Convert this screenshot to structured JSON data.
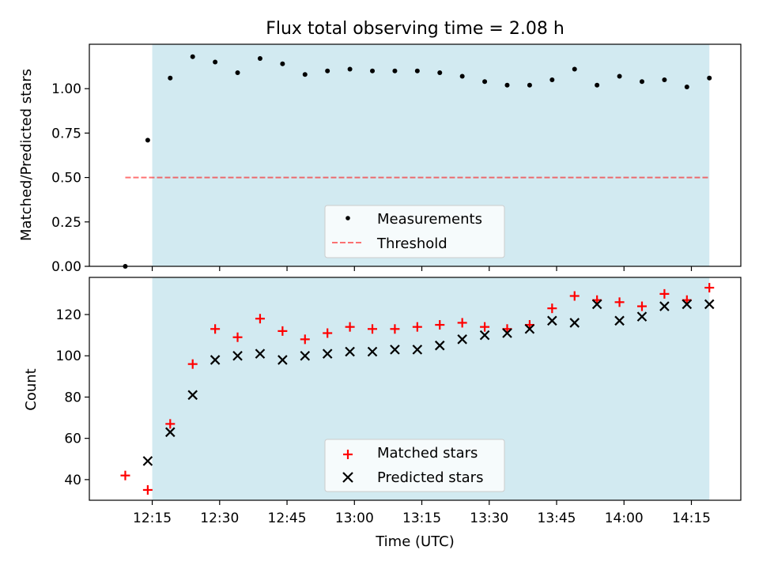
{
  "colors": {
    "shade": "#add8e6",
    "measurements": "#000000",
    "threshold": "#ff0000",
    "matched": "#ff0000",
    "predicted": "#000000"
  },
  "chart_data": [
    {
      "type": "scatter",
      "title": "Flux total observing time = 2.08 h",
      "xlabel": "",
      "ylabel": "Matched/Predicted stars",
      "ylim": [
        0.0,
        1.25
      ],
      "yticks": [
        "0.00",
        "0.25",
        "0.50",
        "0.75",
        "1.00"
      ],
      "xlim": [
        "12:01",
        "14:26"
      ],
      "shaded_interval": [
        "12:15",
        "14:19"
      ],
      "threshold": {
        "name": "Threshold",
        "value": 0.5,
        "x_start": "12:09",
        "x_end": "14:19"
      },
      "legend": {
        "placement": "lower center",
        "entries": [
          "Measurements",
          "Threshold"
        ]
      },
      "series": [
        {
          "name": "Measurements",
          "x": [
            "12:09",
            "12:14",
            "12:19",
            "12:24",
            "12:29",
            "12:34",
            "12:39",
            "12:44",
            "12:49",
            "12:54",
            "12:59",
            "13:04",
            "13:09",
            "13:14",
            "13:19",
            "13:24",
            "13:29",
            "13:34",
            "13:39",
            "13:44",
            "13:49",
            "13:54",
            "13:59",
            "14:04",
            "14:09",
            "14:14",
            "14:19"
          ],
          "y": [
            0.0,
            0.71,
            1.06,
            1.18,
            1.15,
            1.09,
            1.17,
            1.14,
            1.08,
            1.1,
            1.11,
            1.1,
            1.1,
            1.1,
            1.09,
            1.07,
            1.04,
            1.02,
            1.02,
            1.05,
            1.11,
            1.02,
            1.07,
            1.04,
            1.05,
            1.01,
            1.06
          ]
        }
      ]
    },
    {
      "type": "scatter",
      "title": "",
      "xlabel": "Time (UTC)",
      "ylabel": "Count",
      "ylim": [
        30,
        138
      ],
      "yticks": [
        40,
        60,
        80,
        100,
        120
      ],
      "xlim": [
        "12:01",
        "14:26"
      ],
      "xticks": [
        "12:15",
        "12:30",
        "12:45",
        "13:00",
        "13:15",
        "13:30",
        "13:45",
        "14:00",
        "14:15"
      ],
      "shaded_interval": [
        "12:15",
        "14:19"
      ],
      "legend": {
        "placement": "lower center",
        "entries": [
          "Matched stars",
          "Predicted stars"
        ]
      },
      "series": [
        {
          "name": "Matched stars",
          "marker": "+",
          "x": [
            "12:09",
            "12:14",
            "12:19",
            "12:24",
            "12:29",
            "12:34",
            "12:39",
            "12:44",
            "12:49",
            "12:54",
            "12:59",
            "13:04",
            "13:09",
            "13:14",
            "13:19",
            "13:24",
            "13:29",
            "13:34",
            "13:39",
            "13:44",
            "13:49",
            "13:54",
            "13:59",
            "14:04",
            "14:09",
            "14:14",
            "14:19"
          ],
          "y": [
            42,
            35,
            67,
            96,
            113,
            109,
            118,
            112,
            108,
            111,
            114,
            113,
            113,
            114,
            115,
            116,
            114,
            113,
            115,
            123,
            129,
            127,
            126,
            124,
            130,
            127,
            133
          ]
        },
        {
          "name": "Predicted stars",
          "marker": "x",
          "x": [
            "12:14",
            "12:19",
            "12:24",
            "12:29",
            "12:34",
            "12:39",
            "12:44",
            "12:49",
            "12:54",
            "12:59",
            "13:04",
            "13:09",
            "13:14",
            "13:19",
            "13:24",
            "13:29",
            "13:34",
            "13:39",
            "13:44",
            "13:49",
            "13:54",
            "13:59",
            "14:04",
            "14:09",
            "14:14",
            "14:19"
          ],
          "y": [
            49,
            63,
            81,
            98,
            100,
            101,
            98,
            100,
            101,
            102,
            102,
            103,
            103,
            105,
            108,
            110,
            111,
            113,
            117,
            116,
            125,
            117,
            119,
            124,
            125,
            125
          ]
        }
      ]
    }
  ]
}
